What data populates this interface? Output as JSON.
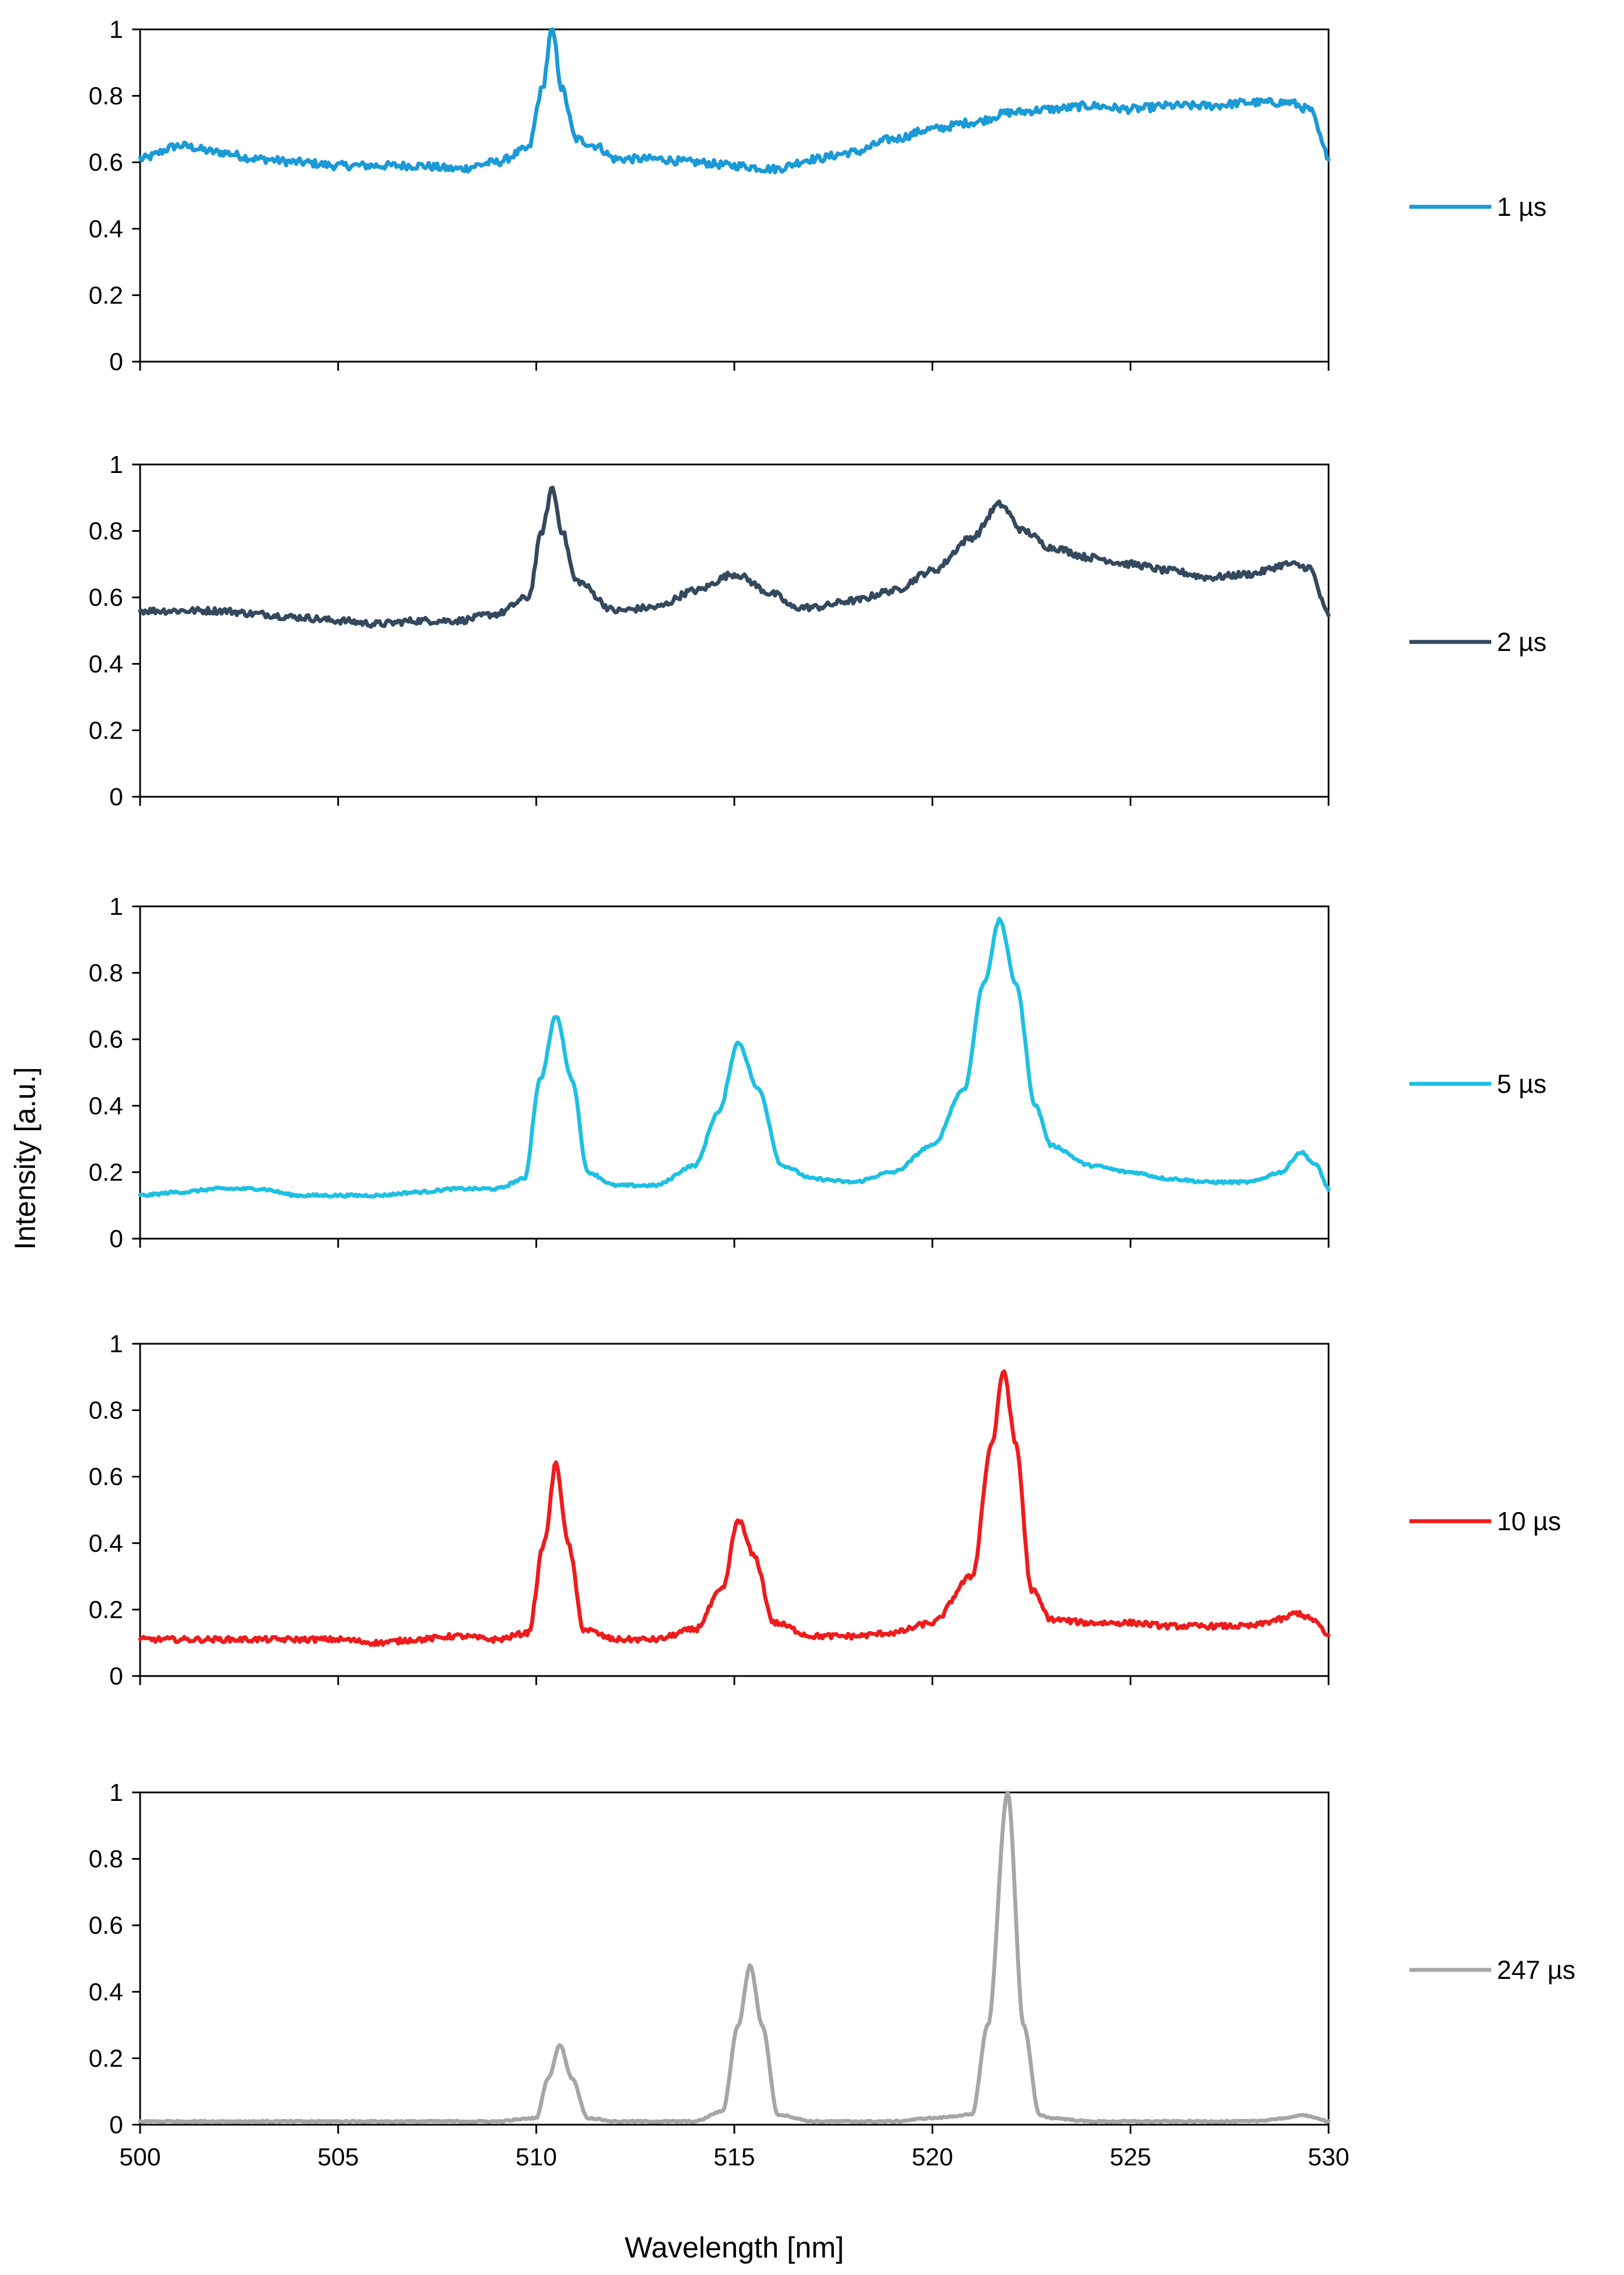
{
  "chart_data": {
    "type": "line",
    "ylabel": "Intensity [a.u.]",
    "xlabel": "Wavelength [nm]",
    "xlim": [
      500,
      530
    ],
    "ylim": [
      0,
      1
    ],
    "x_ticks": [
      500,
      505,
      510,
      515,
      520,
      525,
      530
    ],
    "y_ticks": [
      0,
      0.2,
      0.4,
      0.6,
      0.8,
      1
    ],
    "y_tick_labels": [
      "0",
      "0.2",
      "0.4",
      "0.6",
      "0.8",
      "1"
    ],
    "panels": [
      {
        "name": "1 µs",
        "color": "#1a9ad6",
        "baseline": [
          [
            500,
            0.61
          ],
          [
            501,
            0.65
          ],
          [
            502,
            0.63
          ],
          [
            503,
            0.61
          ],
          [
            504,
            0.6
          ],
          [
            505,
            0.59
          ],
          [
            506,
            0.59
          ],
          [
            507,
            0.59
          ],
          [
            508,
            0.58
          ],
          [
            509,
            0.6
          ],
          [
            509.8,
            0.64
          ],
          [
            510.15,
            0.82
          ],
          [
            510.4,
            1.0
          ],
          [
            510.65,
            0.82
          ],
          [
            511,
            0.67
          ],
          [
            511.5,
            0.65
          ],
          [
            512,
            0.61
          ],
          [
            513,
            0.61
          ],
          [
            514,
            0.6
          ],
          [
            515,
            0.59
          ],
          [
            516,
            0.58
          ],
          [
            517,
            0.61
          ],
          [
            518,
            0.63
          ],
          [
            519,
            0.67
          ],
          [
            520,
            0.7
          ],
          [
            521,
            0.72
          ],
          [
            522,
            0.75
          ],
          [
            523,
            0.76
          ],
          [
            524,
            0.77
          ],
          [
            525,
            0.76
          ],
          [
            526,
            0.77
          ],
          [
            527,
            0.77
          ],
          [
            528,
            0.78
          ],
          [
            529,
            0.78
          ],
          [
            529.5,
            0.76
          ],
          [
            530,
            0.62
          ]
        ],
        "noise": 0.012
      },
      {
        "name": "2 µs",
        "color": "#34495e",
        "baseline": [
          [
            500,
            0.56
          ],
          [
            501,
            0.56
          ],
          [
            502,
            0.56
          ],
          [
            503,
            0.55
          ],
          [
            504,
            0.54
          ],
          [
            505,
            0.53
          ],
          [
            506,
            0.52
          ],
          [
            507,
            0.53
          ],
          [
            508,
            0.53
          ],
          [
            509,
            0.55
          ],
          [
            509.8,
            0.6
          ],
          [
            510.15,
            0.8
          ],
          [
            510.4,
            0.93
          ],
          [
            510.65,
            0.8
          ],
          [
            511,
            0.65
          ],
          [
            512,
            0.56
          ],
          [
            513,
            0.57
          ],
          [
            514,
            0.62
          ],
          [
            515,
            0.67
          ],
          [
            516,
            0.61
          ],
          [
            516.5,
            0.57
          ],
          [
            517,
            0.57
          ],
          [
            518,
            0.59
          ],
          [
            519,
            0.62
          ],
          [
            520,
            0.68
          ],
          [
            521,
            0.78
          ],
          [
            521.7,
            0.88
          ],
          [
            522.3,
            0.8
          ],
          [
            523,
            0.75
          ],
          [
            524,
            0.72
          ],
          [
            525,
            0.7
          ],
          [
            526,
            0.68
          ],
          [
            527,
            0.66
          ],
          [
            528,
            0.67
          ],
          [
            529,
            0.7
          ],
          [
            529.5,
            0.69
          ],
          [
            530,
            0.55
          ]
        ],
        "noise": 0.01
      },
      {
        "name": "5 µs",
        "color": "#1ec0e2",
        "baseline": [
          [
            500,
            0.13
          ],
          [
            501,
            0.14
          ],
          [
            502,
            0.15
          ],
          [
            503,
            0.15
          ],
          [
            504,
            0.13
          ],
          [
            505,
            0.13
          ],
          [
            506,
            0.13
          ],
          [
            507,
            0.14
          ],
          [
            508,
            0.15
          ],
          [
            509,
            0.15
          ],
          [
            509.7,
            0.18
          ],
          [
            510.1,
            0.48
          ],
          [
            510.5,
            0.67
          ],
          [
            510.9,
            0.48
          ],
          [
            511.3,
            0.2
          ],
          [
            512,
            0.16
          ],
          [
            513,
            0.16
          ],
          [
            514,
            0.22
          ],
          [
            514.6,
            0.38
          ],
          [
            515.1,
            0.59
          ],
          [
            515.6,
            0.45
          ],
          [
            516.2,
            0.22
          ],
          [
            517,
            0.18
          ],
          [
            518,
            0.17
          ],
          [
            519,
            0.2
          ],
          [
            520,
            0.28
          ],
          [
            520.8,
            0.45
          ],
          [
            521.3,
            0.77
          ],
          [
            521.7,
            0.96
          ],
          [
            522.1,
            0.77
          ],
          [
            522.6,
            0.4
          ],
          [
            523,
            0.28
          ],
          [
            524,
            0.22
          ],
          [
            525,
            0.2
          ],
          [
            526,
            0.18
          ],
          [
            527,
            0.17
          ],
          [
            528,
            0.17
          ],
          [
            528.8,
            0.2
          ],
          [
            529.3,
            0.26
          ],
          [
            529.7,
            0.22
          ],
          [
            530,
            0.15
          ]
        ],
        "noise": 0.004
      },
      {
        "name": "10 µs",
        "color": "#ee1c1c",
        "baseline": [
          [
            500,
            0.11
          ],
          [
            501,
            0.11
          ],
          [
            502,
            0.11
          ],
          [
            503,
            0.11
          ],
          [
            504,
            0.11
          ],
          [
            505,
            0.11
          ],
          [
            506,
            0.1
          ],
          [
            507,
            0.11
          ],
          [
            508,
            0.12
          ],
          [
            509,
            0.11
          ],
          [
            509.8,
            0.13
          ],
          [
            510.2,
            0.4
          ],
          [
            510.5,
            0.64
          ],
          [
            510.8,
            0.4
          ],
          [
            511.2,
            0.14
          ],
          [
            512,
            0.11
          ],
          [
            513,
            0.11
          ],
          [
            514,
            0.14
          ],
          [
            514.7,
            0.26
          ],
          [
            515.1,
            0.47
          ],
          [
            515.5,
            0.36
          ],
          [
            516,
            0.16
          ],
          [
            517,
            0.12
          ],
          [
            518,
            0.12
          ],
          [
            519,
            0.13
          ],
          [
            520,
            0.16
          ],
          [
            521,
            0.3
          ],
          [
            521.5,
            0.7
          ],
          [
            521.8,
            0.92
          ],
          [
            522.1,
            0.7
          ],
          [
            522.5,
            0.26
          ],
          [
            523,
            0.17
          ],
          [
            524,
            0.16
          ],
          [
            525,
            0.16
          ],
          [
            526,
            0.15
          ],
          [
            527,
            0.15
          ],
          [
            528,
            0.15
          ],
          [
            528.8,
            0.17
          ],
          [
            529.2,
            0.19
          ],
          [
            529.6,
            0.17
          ],
          [
            530,
            0.12
          ]
        ],
        "noise": 0.008
      },
      {
        "name": "247 µs",
        "color": "#a6a6a6",
        "baseline": [
          [
            500,
            0.01
          ],
          [
            501,
            0.01
          ],
          [
            502,
            0.01
          ],
          [
            503,
            0.01
          ],
          [
            504,
            0.01
          ],
          [
            505,
            0.01
          ],
          [
            506,
            0.01
          ],
          [
            507,
            0.01
          ],
          [
            508,
            0.01
          ],
          [
            509,
            0.01
          ],
          [
            510,
            0.02
          ],
          [
            510.3,
            0.14
          ],
          [
            510.6,
            0.24
          ],
          [
            510.9,
            0.14
          ],
          [
            511.3,
            0.02
          ],
          [
            512,
            0.01
          ],
          [
            513,
            0.01
          ],
          [
            514,
            0.01
          ],
          [
            514.7,
            0.04
          ],
          [
            515.1,
            0.3
          ],
          [
            515.4,
            0.48
          ],
          [
            515.7,
            0.3
          ],
          [
            516.1,
            0.03
          ],
          [
            517,
            0.01
          ],
          [
            518,
            0.01
          ],
          [
            519,
            0.01
          ],
          [
            520,
            0.02
          ],
          [
            521,
            0.03
          ],
          [
            521.4,
            0.3
          ],
          [
            521.9,
            1.0
          ],
          [
            522.3,
            0.3
          ],
          [
            522.7,
            0.03
          ],
          [
            523,
            0.02
          ],
          [
            524,
            0.01
          ],
          [
            525,
            0.01
          ],
          [
            526,
            0.01
          ],
          [
            527,
            0.01
          ],
          [
            528,
            0.01
          ],
          [
            529,
            0.02
          ],
          [
            529.3,
            0.03
          ],
          [
            529.7,
            0.02
          ],
          [
            530,
            0.01
          ]
        ],
        "noise": 0.002
      }
    ]
  }
}
